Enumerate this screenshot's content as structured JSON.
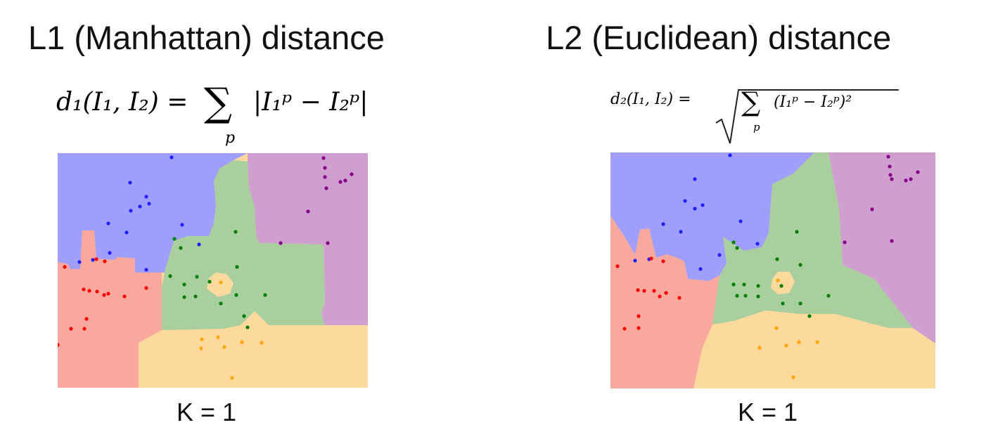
{
  "panels": [
    {
      "title": "L1 (Manhattan) distance",
      "caption": "K = 1",
      "formula": {
        "lhs": "d₁(I₁, I₂) =",
        "sum": "∑",
        "sub": "p",
        "body": "|I₁ᵖ − I₂ᵖ|"
      }
    },
    {
      "title": "L2 (Euclidean) distance",
      "caption": "K = 1",
      "formula": {
        "lhs": "d₂(I₁, I₂) =",
        "radical": "√",
        "sum": "∑",
        "sub": "p",
        "body": "(I₁ᵖ − I₂ᵖ)²"
      }
    }
  ],
  "colors": {
    "blue_region": "#9f9ffb",
    "purple_region": "#cf9fcf",
    "green_region": "#a9cf9f",
    "red_region": "#f9a89d",
    "orange_region": "#fcd99c",
    "blue_point": "#2020ff",
    "purple_point": "#8b008b",
    "green_point": "#008000",
    "red_point": "#ff0000",
    "orange_point": "#ffa500"
  }
}
